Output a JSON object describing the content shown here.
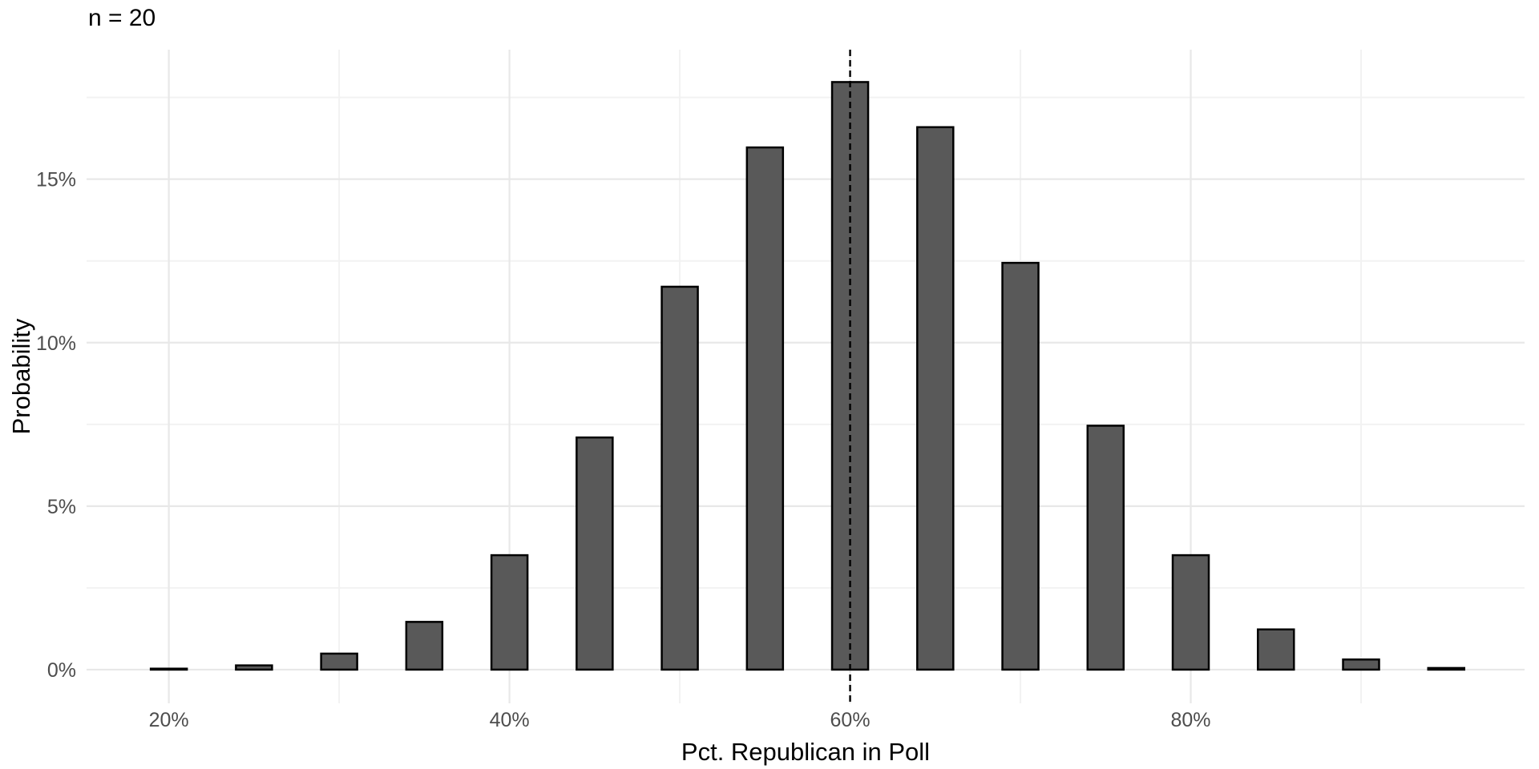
{
  "title": "n = 20",
  "chart_data": {
    "type": "bar",
    "title": "n = 20",
    "xlabel": "Pct. Republican in Poll",
    "ylabel": "Probability",
    "x": [
      20,
      25,
      30,
      35,
      40,
      45,
      50,
      55,
      60,
      65,
      70,
      75,
      80,
      85,
      90,
      95
    ],
    "values": [
      0.03,
      0.13,
      0.49,
      1.46,
      3.5,
      7.1,
      11.71,
      15.97,
      17.97,
      16.59,
      12.44,
      7.46,
      3.5,
      1.23,
      0.31,
      0.05
    ],
    "value_unit": "percent",
    "xlim": [
      15.17,
      99.6
    ],
    "ylim": [
      -1.03,
      18.96
    ],
    "x_major_ticks": [
      20,
      40,
      60,
      80
    ],
    "x_major_tick_labels": [
      "20%",
      "40%",
      "60%",
      "80%"
    ],
    "x_minor_gridlines": [
      30,
      50,
      70,
      90
    ],
    "y_major_ticks": [
      0,
      5,
      10,
      15
    ],
    "y_major_tick_labels": [
      "0%",
      "5%",
      "10%",
      "15%"
    ],
    "y_minor_gridlines": [
      2.5,
      7.5,
      12.5,
      17.5
    ],
    "reference_line": {
      "x": 60,
      "style": "dashed",
      "color": "#000000"
    },
    "legend": "none",
    "grid": "on",
    "colors": {
      "bar_fill": "#595959",
      "bar_stroke": "#000000",
      "grid_major": "#e8e8e8",
      "grid_minor": "#f2f2f2",
      "tick_text": "#4d4d4d",
      "background": "#ffffff"
    }
  }
}
